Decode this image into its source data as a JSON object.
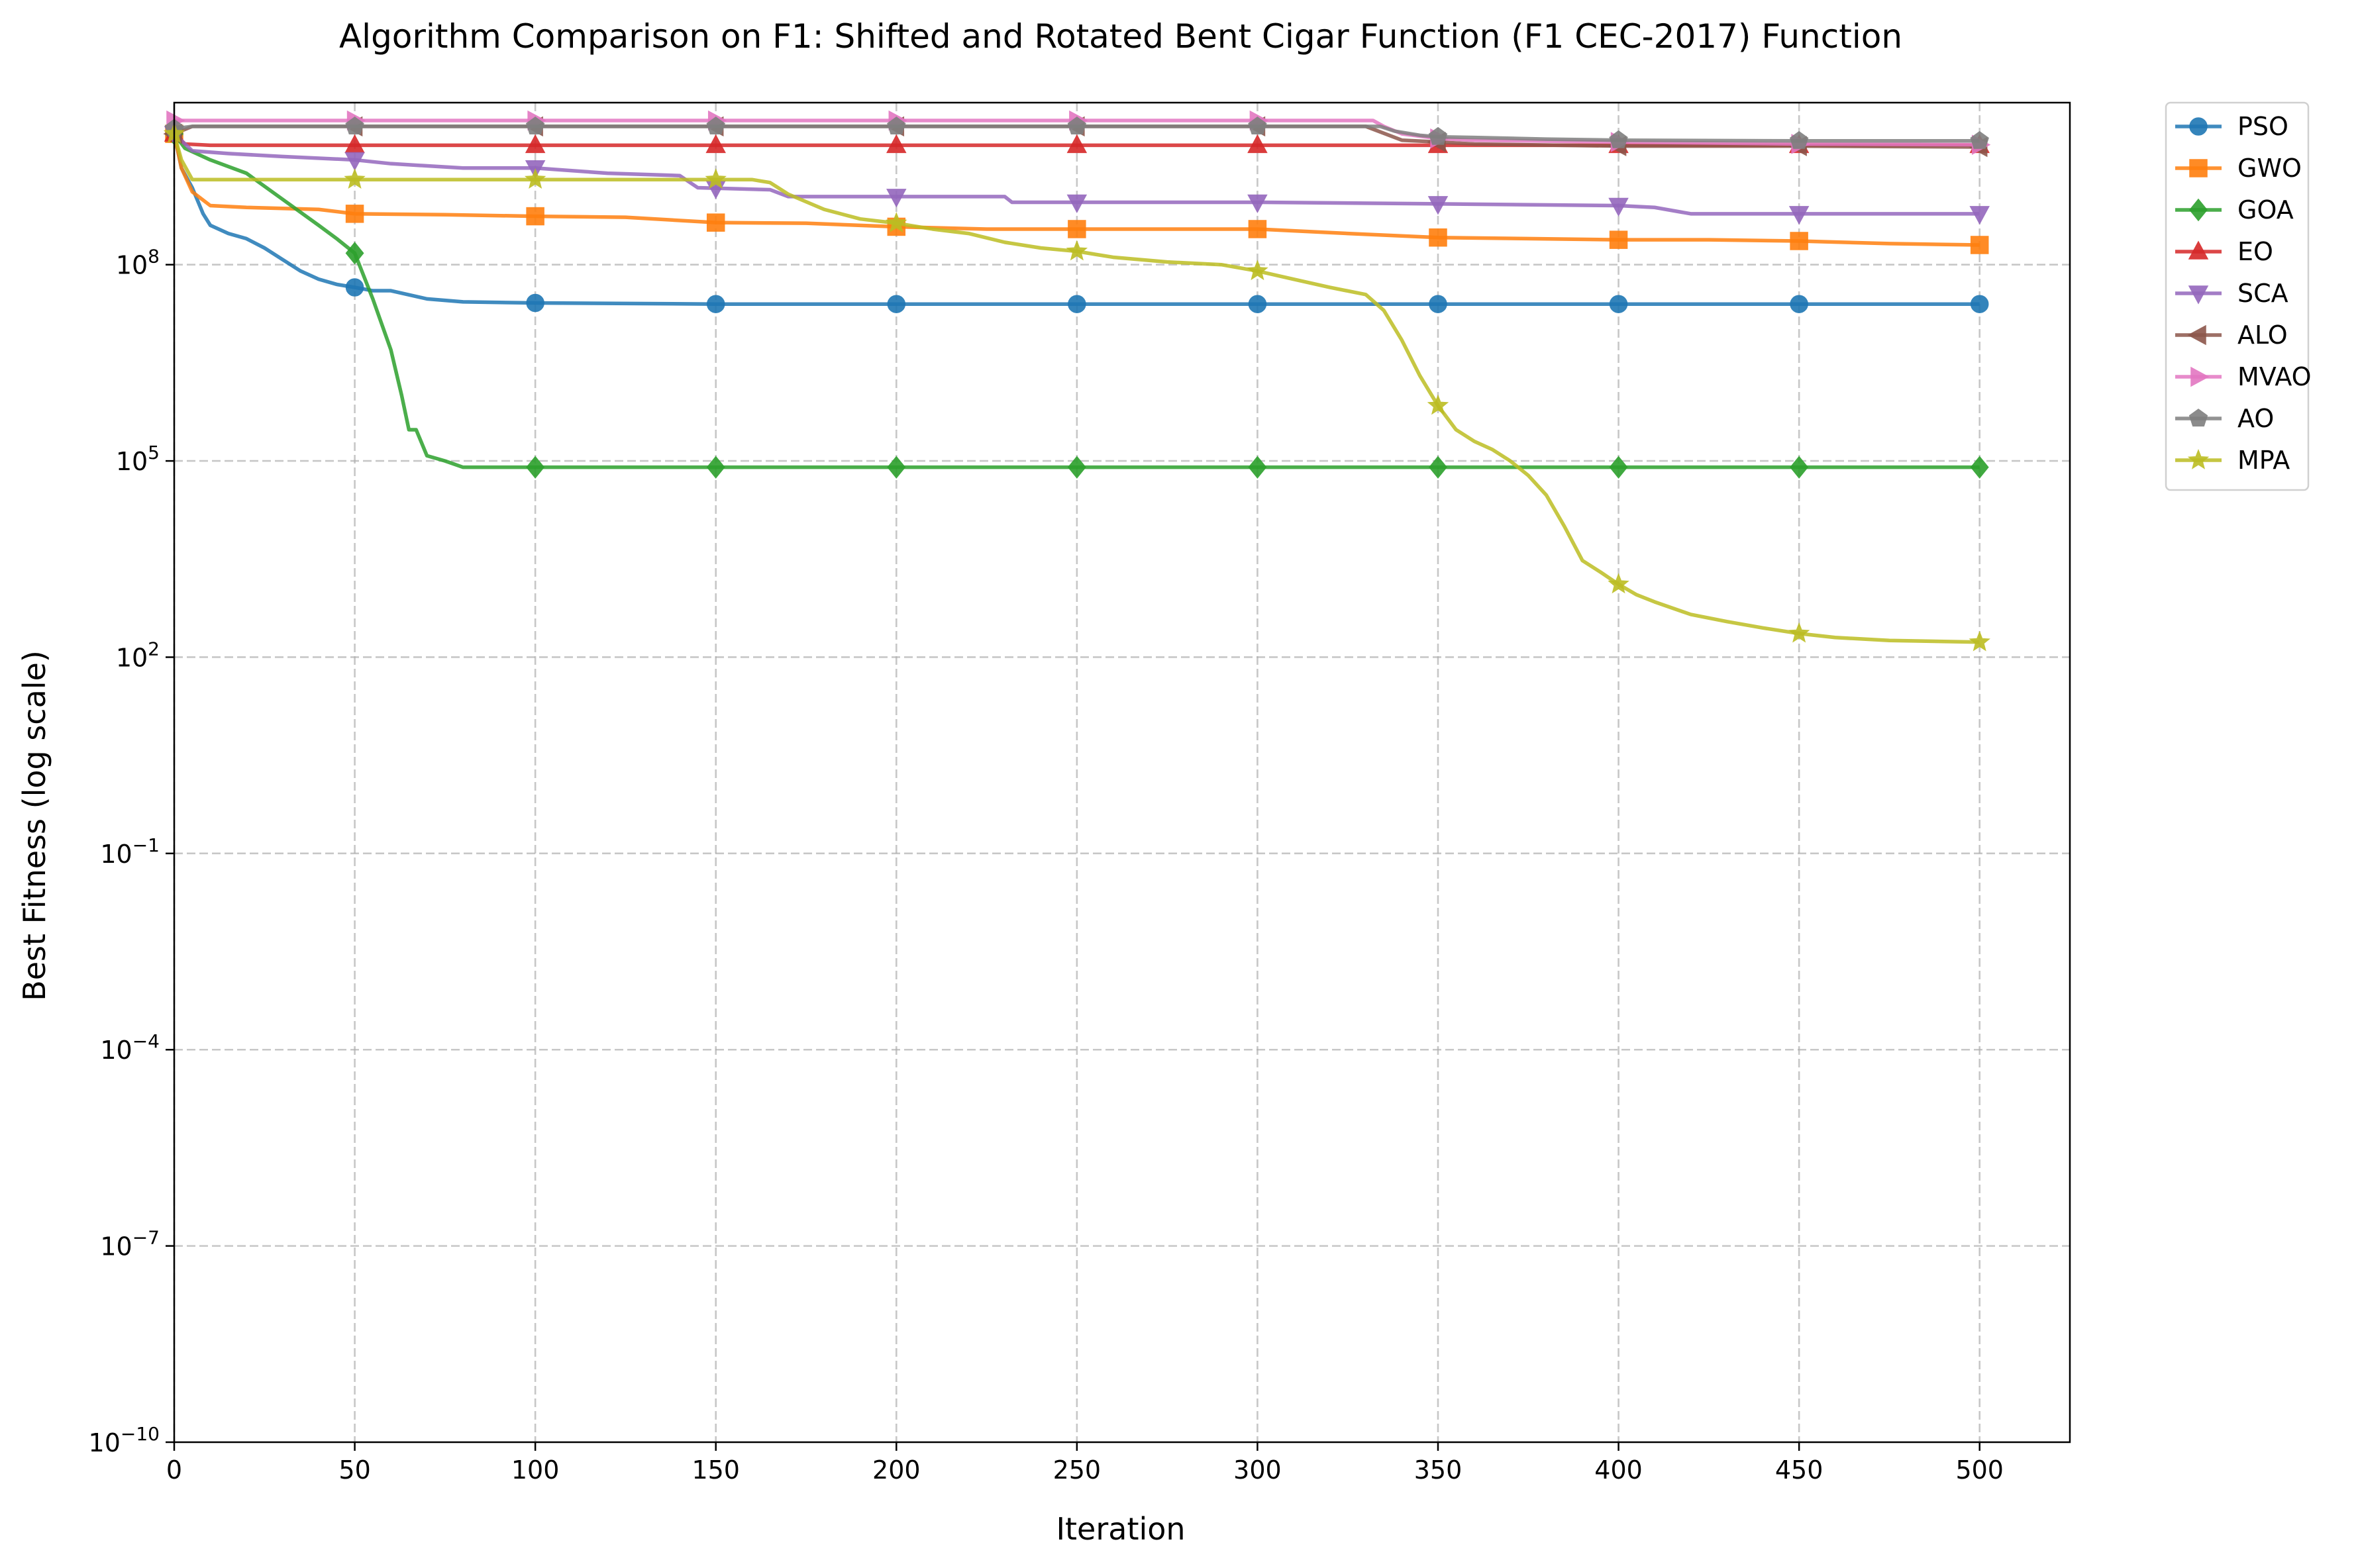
{
  "chart_data": {
    "type": "line",
    "title": "Algorithm Comparison on F1: Shifted and Rotated Bent Cigar Function (F1 CEC-2017) Function",
    "xlabel": "Iteration",
    "ylabel": "Best Fitness (log scale)",
    "xlim": [
      0,
      525
    ],
    "ylim": [
      1e-10,
      30000000000.0
    ],
    "yscale": "log",
    "grid": true,
    "legend_position": "outside-top-right",
    "x_ticks": [
      0,
      50,
      100,
      150,
      200,
      250,
      300,
      350,
      400,
      450,
      500
    ],
    "y_ticks": [
      {
        "value": 1e-10,
        "base": "10",
        "exp": "−10"
      },
      {
        "value": 1e-07,
        "base": "10",
        "exp": "−7"
      },
      {
        "value": 0.0001,
        "base": "10",
        "exp": "−4"
      },
      {
        "value": 0.1,
        "base": "10",
        "exp": "−1"
      },
      {
        "value": 100,
        "base": "10",
        "exp": "2"
      },
      {
        "value": 100000,
        "base": "10",
        "exp": "5"
      },
      {
        "value": 100000000,
        "base": "10",
        "exp": "8"
      }
    ],
    "marker_every": 50,
    "series": [
      {
        "name": "PSO",
        "color": "#1f77b4",
        "marker": "circle",
        "points": [
          [
            0,
            10000000000.0
          ],
          [
            2,
            3000000000.0
          ],
          [
            5,
            1500000000.0
          ],
          [
            8,
            600000000.0
          ],
          [
            10,
            400000000.0
          ],
          [
            15,
            300000000.0
          ],
          [
            20,
            250000000.0
          ],
          [
            25,
            180000000.0
          ],
          [
            30,
            120000000.0
          ],
          [
            35,
            80000000.0
          ],
          [
            40,
            60000000.0
          ],
          [
            45,
            50000000.0
          ],
          [
            50,
            45000000.0
          ],
          [
            55,
            40000000.0
          ],
          [
            60,
            40000000.0
          ],
          [
            70,
            30000000.0
          ],
          [
            80,
            27000000.0
          ],
          [
            100,
            26000000.0
          ],
          [
            150,
            25000000.0
          ],
          [
            200,
            25000000.0
          ],
          [
            300,
            25000000.0
          ],
          [
            400,
            25000000.0
          ],
          [
            500,
            25000000.0
          ]
        ]
      },
      {
        "name": "GWO",
        "color": "#ff7f0e",
        "marker": "square",
        "points": [
          [
            0,
            10000000000.0
          ],
          [
            2,
            3000000000.0
          ],
          [
            5,
            1300000000.0
          ],
          [
            10,
            800000000.0
          ],
          [
            20,
            750000000.0
          ],
          [
            40,
            700000000.0
          ],
          [
            50,
            600000000.0
          ],
          [
            75,
            580000000.0
          ],
          [
            100,
            550000000.0
          ],
          [
            125,
            530000000.0
          ],
          [
            150,
            440000000.0
          ],
          [
            175,
            430000000.0
          ],
          [
            200,
            380000000.0
          ],
          [
            225,
            350000000.0
          ],
          [
            250,
            350000000.0
          ],
          [
            275,
            350000000.0
          ],
          [
            300,
            350000000.0
          ],
          [
            325,
            300000000.0
          ],
          [
            350,
            260000000.0
          ],
          [
            375,
            250000000.0
          ],
          [
            400,
            240000000.0
          ],
          [
            425,
            240000000.0
          ],
          [
            450,
            230000000.0
          ],
          [
            475,
            210000000.0
          ],
          [
            500,
            200000000.0
          ]
        ]
      },
      {
        "name": "GOA",
        "color": "#2ca02c",
        "marker": "diamond",
        "points": [
          [
            0,
            10000000000.0
          ],
          [
            3,
            6000000000.0
          ],
          [
            10,
            4000000000.0
          ],
          [
            20,
            2500000000.0
          ],
          [
            30,
            1000000000.0
          ],
          [
            40,
            400000000.0
          ],
          [
            45,
            250000000.0
          ],
          [
            50,
            150000000.0
          ],
          [
            55,
            30000000.0
          ],
          [
            60,
            5000000.0
          ],
          [
            63,
            1000000.0
          ],
          [
            65,
            300000.0
          ],
          [
            67,
            300000.0
          ],
          [
            70,
            120000.0
          ],
          [
            75,
            100000.0
          ],
          [
            80,
            80000.0
          ],
          [
            100,
            80000.0
          ],
          [
            200,
            80000.0
          ],
          [
            300,
            80000.0
          ],
          [
            400,
            80000.0
          ],
          [
            500,
            80000.0
          ]
        ]
      },
      {
        "name": "EO",
        "color": "#d62728",
        "marker": "triangle-up",
        "points": [
          [
            0,
            10000000000.0
          ],
          [
            3,
            7000000000.0
          ],
          [
            10,
            6700000000.0
          ],
          [
            50,
            6700000000.0
          ],
          [
            100,
            6700000000.0
          ],
          [
            200,
            6700000000.0
          ],
          [
            300,
            6700000000.0
          ],
          [
            400,
            6700000000.0
          ],
          [
            500,
            6700000000.0
          ]
        ]
      },
      {
        "name": "SCA",
        "color": "#9467bd",
        "marker": "triangle-down",
        "points": [
          [
            0,
            10000000000.0
          ],
          [
            5,
            5500000000.0
          ],
          [
            15,
            5000000000.0
          ],
          [
            30,
            4500000000.0
          ],
          [
            50,
            4000000000.0
          ],
          [
            60,
            3500000000.0
          ],
          [
            80,
            3000000000.0
          ],
          [
            100,
            3000000000.0
          ],
          [
            120,
            2500000000.0
          ],
          [
            140,
            2300000000.0
          ],
          [
            145,
            1500000000.0
          ],
          [
            165,
            1400000000.0
          ],
          [
            170,
            1100000000.0
          ],
          [
            200,
            1100000000.0
          ],
          [
            230,
            1100000000.0
          ],
          [
            232,
            900000000.0
          ],
          [
            300,
            900000000.0
          ],
          [
            350,
            850000000.0
          ],
          [
            400,
            800000000.0
          ],
          [
            410,
            750000000.0
          ],
          [
            420,
            600000000.0
          ],
          [
            450,
            600000000.0
          ],
          [
            500,
            600000000.0
          ]
        ]
      },
      {
        "name": "ALO",
        "color": "#8c564b",
        "marker": "triangle-left",
        "points": [
          [
            0,
            10000000000.0
          ],
          [
            5,
            13000000000.0
          ],
          [
            100,
            13000000000.0
          ],
          [
            200,
            13000000000.0
          ],
          [
            300,
            13000000000.0
          ],
          [
            330,
            13000000000.0
          ],
          [
            340,
            8000000000.0
          ],
          [
            350,
            7500000000.0
          ],
          [
            360,
            7000000000.0
          ],
          [
            400,
            6500000000.0
          ],
          [
            450,
            6500000000.0
          ],
          [
            500,
            6300000000.0
          ]
        ]
      },
      {
        "name": "MVAO",
        "color": "#e377c2",
        "marker": "triangle-right",
        "points": [
          [
            0,
            16000000000.0
          ],
          [
            5,
            16000000000.0
          ],
          [
            100,
            16000000000.0
          ],
          [
            200,
            16000000000.0
          ],
          [
            300,
            16000000000.0
          ],
          [
            332,
            16000000000.0
          ],
          [
            335,
            13000000000.0
          ],
          [
            340,
            10000000000.0
          ],
          [
            350,
            8500000000.0
          ],
          [
            360,
            8000000000.0
          ],
          [
            400,
            7500000000.0
          ],
          [
            450,
            7000000000.0
          ],
          [
            500,
            6800000000.0
          ]
        ]
      },
      {
        "name": "AO",
        "color": "#7f7f7f",
        "marker": "pentagon",
        "points": [
          [
            0,
            12000000000.0
          ],
          [
            5,
            13000000000.0
          ],
          [
            100,
            13000000000.0
          ],
          [
            200,
            13000000000.0
          ],
          [
            300,
            13000000000.0
          ],
          [
            334,
            13000000000.0
          ],
          [
            338,
            11000000000.0
          ],
          [
            345,
            9500000000.0
          ],
          [
            350,
            9000000000.0
          ],
          [
            360,
            8800000000.0
          ],
          [
            380,
            8300000000.0
          ],
          [
            400,
            8000000000.0
          ],
          [
            450,
            7800000000.0
          ],
          [
            500,
            7800000000.0
          ]
        ]
      },
      {
        "name": "MPA",
        "color": "#bcbd22",
        "marker": "star",
        "points": [
          [
            0,
            10000000000.0
          ],
          [
            2,
            4000000000.0
          ],
          [
            5,
            2000000000.0
          ],
          [
            10,
            2000000000.0
          ],
          [
            50,
            2000000000.0
          ],
          [
            100,
            2000000000.0
          ],
          [
            150,
            2000000000.0
          ],
          [
            160,
            2000000000.0
          ],
          [
            165,
            1800000000.0
          ],
          [
            170,
            1200000000.0
          ],
          [
            180,
            700000000.0
          ],
          [
            190,
            500000000.0
          ],
          [
            200,
            430000000.0
          ],
          [
            210,
            350000000.0
          ],
          [
            220,
            300000000.0
          ],
          [
            230,
            220000000.0
          ],
          [
            240,
            180000000.0
          ],
          [
            250,
            160000000.0
          ],
          [
            260,
            130000000.0
          ],
          [
            275,
            110000000.0
          ],
          [
            290,
            100000000.0
          ],
          [
            300,
            80000000.0
          ],
          [
            310,
            60000000.0
          ],
          [
            320,
            45000000.0
          ],
          [
            330,
            35000000.0
          ],
          [
            335,
            20000000.0
          ],
          [
            340,
            7000000.0
          ],
          [
            345,
            2000000.0
          ],
          [
            350,
            700000.0
          ],
          [
            355,
            300000.0
          ],
          [
            360,
            200000.0
          ],
          [
            365,
            150000.0
          ],
          [
            370,
            100000.0
          ],
          [
            375,
            60000.0
          ],
          [
            380,
            30000.0
          ],
          [
            385,
            10000.0
          ],
          [
            390,
            3000.0
          ],
          [
            395,
            2000.0
          ],
          [
            400,
            1300.0
          ],
          [
            405,
            900
          ],
          [
            410,
            700
          ],
          [
            420,
            450
          ],
          [
            430,
            350
          ],
          [
            440,
            280
          ],
          [
            450,
            230
          ],
          [
            460,
            200
          ],
          [
            475,
            180
          ],
          [
            500,
            170
          ]
        ]
      }
    ]
  }
}
